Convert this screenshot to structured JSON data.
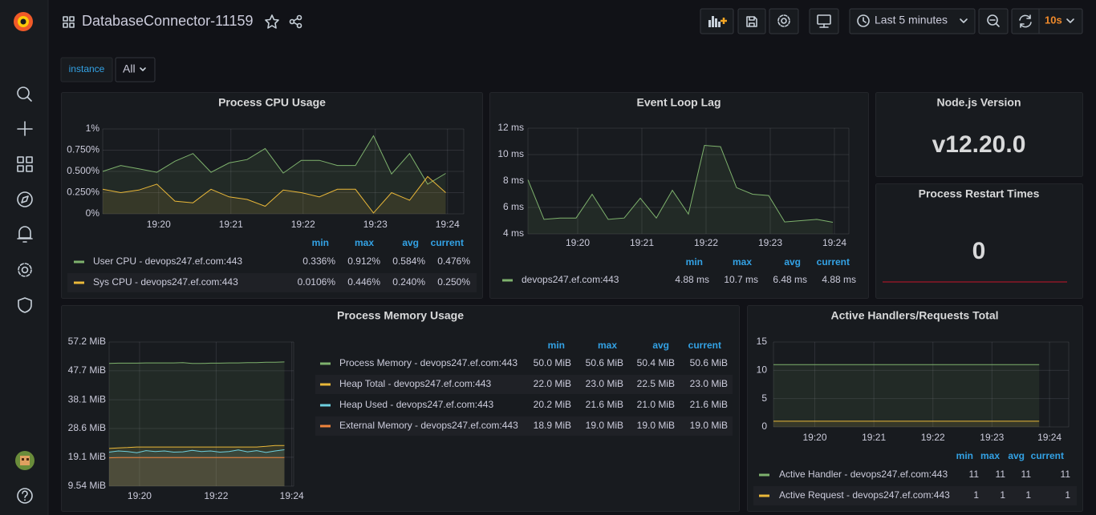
{
  "header": {
    "title": "DatabaseConnector-11159",
    "time_range": "Last 5 minutes",
    "refresh": "10s"
  },
  "variables": {
    "label": "instance",
    "value": "All"
  },
  "panels": [
    {
      "title": "Process CPU Usage",
      "type": "line",
      "xlim": [
        0,
        20
      ],
      "xticks": [
        {
          "value": 3.1,
          "label": "19:20"
        },
        {
          "value": 7.1,
          "label": "19:21"
        },
        {
          "value": 11.1,
          "label": "19:22"
        },
        {
          "value": 15.1,
          "label": "19:23"
        },
        {
          "value": 19.1,
          "label": "19:24"
        }
      ],
      "ylim": [
        0,
        1
      ],
      "yticks": [
        {
          "value": 0,
          "label": "0%"
        },
        {
          "value": 0.25,
          "label": "0.250%"
        },
        {
          "value": 0.5,
          "label": "0.500%"
        },
        {
          "value": 0.75,
          "label": "0.750%"
        },
        {
          "value": 1,
          "label": "1%"
        }
      ],
      "legend_columns": [
        "min",
        "max",
        "avg",
        "current"
      ],
      "series": [
        {
          "name": "User CPU - devops247.ef.com:443",
          "color": "#7eb26d",
          "values": [
            0.5,
            0.57,
            0.53,
            0.49,
            0.62,
            0.71,
            0.49,
            0.6,
            0.64,
            0.77,
            0.48,
            0.63,
            0.63,
            0.57,
            0.57,
            0.92,
            0.47,
            0.71,
            0.35,
            0.476
          ],
          "stats": [
            "0.336%",
            "0.912%",
            "0.584%",
            "0.476%"
          ]
        },
        {
          "name": "Sys CPU - devops247.ef.com:443",
          "color": "#eab839",
          "values": [
            0.29,
            0.25,
            0.28,
            0.35,
            0.15,
            0.13,
            0.29,
            0.2,
            0.17,
            0.09,
            0.28,
            0.25,
            0.2,
            0.29,
            0.29,
            0.01,
            0.25,
            0.16,
            0.44,
            0.25
          ],
          "stats": [
            "0.0106%",
            "0.446%",
            "0.240%",
            "0.250%"
          ]
        }
      ]
    },
    {
      "title": "Event Loop Lag",
      "type": "line",
      "xlim": [
        0,
        20
      ],
      "xticks": [
        {
          "value": 3.1,
          "label": "19:20"
        },
        {
          "value": 7.1,
          "label": "19:21"
        },
        {
          "value": 11.1,
          "label": "19:22"
        },
        {
          "value": 15.1,
          "label": "19:23"
        },
        {
          "value": 19.1,
          "label": "19:24"
        }
      ],
      "ylim": [
        4,
        12
      ],
      "yticks": [
        {
          "value": 4,
          "label": "4 ms"
        },
        {
          "value": 6,
          "label": "6 ms"
        },
        {
          "value": 8,
          "label": "8 ms"
        },
        {
          "value": 10,
          "label": "10 ms"
        },
        {
          "value": 12,
          "label": "12 ms"
        }
      ],
      "legend_columns": [
        "min",
        "max",
        "avg",
        "current"
      ],
      "series": [
        {
          "name": "devops247.ef.com:443",
          "color": "#7eb26d",
          "values": [
            8.1,
            5.1,
            5.2,
            5.2,
            7.0,
            5.1,
            5.2,
            6.7,
            5.2,
            7.3,
            5.5,
            10.7,
            10.6,
            7.5,
            7.0,
            6.9,
            4.9,
            5.0,
            5.1,
            4.88
          ],
          "stats": [
            "4.88 ms",
            "10.7 ms",
            "6.48 ms",
            "4.88 ms"
          ]
        }
      ]
    },
    {
      "title": "Node.js Version",
      "type": "stat",
      "value": "v12.20.0"
    },
    {
      "title": "Process Restart Times",
      "type": "stat",
      "value": 0
    },
    {
      "title": "Process Memory Usage",
      "type": "line",
      "xlim": [
        0,
        20
      ],
      "xticks": [
        {
          "value": 3.3,
          "label": "19:20"
        },
        {
          "value": 11.6,
          "label": "19:22"
        },
        {
          "value": 19.8,
          "label": "19:24"
        }
      ],
      "ylim": [
        9.54,
        57.2
      ],
      "yticks": [
        {
          "value": 9.54,
          "label": "9.54 MiB"
        },
        {
          "value": 19.1,
          "label": "19.1 MiB"
        },
        {
          "value": 28.6,
          "label": "28.6 MiB"
        },
        {
          "value": 38.1,
          "label": "38.1 MiB"
        },
        {
          "value": 47.7,
          "label": "47.7 MiB"
        },
        {
          "value": 57.2,
          "label": "57.2 MiB"
        }
      ],
      "legend_columns": [
        "min",
        "max",
        "avg",
        "current"
      ],
      "series": [
        {
          "name": "Process Memory - devops247.ef.com:443",
          "color": "#7eb26d",
          "values": [
            50.1,
            50.2,
            50.2,
            50.2,
            50.3,
            50.3,
            50.3,
            50.3,
            50.4,
            50.1,
            50.1,
            50.2,
            50.2,
            50.3,
            50.3,
            50.4,
            50.4,
            50.5,
            50.5,
            50.6
          ],
          "stats": [
            "50.0 MiB",
            "50.6 MiB",
            "50.4 MiB",
            "50.6 MiB"
          ]
        },
        {
          "name": "Heap Total - devops247.ef.com:443",
          "color": "#eab839",
          "values": [
            22.0,
            22.2,
            22.3,
            22.5,
            22.5,
            22.5,
            22.5,
            22.5,
            22.5,
            22.5,
            22.5,
            22.5,
            22.5,
            22.5,
            22.5,
            22.5,
            22.5,
            22.7,
            23.0,
            23.0
          ],
          "stats": [
            "22.0 MiB",
            "23.0 MiB",
            "22.5 MiB",
            "23.0 MiB"
          ]
        },
        {
          "name": "Heap Used - devops247.ef.com:443",
          "color": "#6ed0e0",
          "values": [
            20.8,
            21.2,
            21.0,
            20.6,
            21.3,
            21.0,
            21.2,
            20.8,
            20.9,
            21.4,
            21.0,
            21.2,
            20.8,
            21.0,
            21.5,
            20.9,
            21.3,
            20.7,
            21.2,
            21.6
          ],
          "stats": [
            "20.2 MiB",
            "21.6 MiB",
            "21.0 MiB",
            "21.6 MiB"
          ]
        },
        {
          "name": "External Memory - devops247.ef.com:443",
          "color": "#ef843c",
          "values": [
            18.9,
            19.0,
            19.0,
            19.0,
            19.0,
            19.0,
            19.0,
            19.0,
            19.0,
            19.0,
            19.0,
            19.0,
            19.0,
            19.0,
            19.0,
            19.0,
            19.0,
            19.0,
            19.0,
            19.0
          ],
          "stats": [
            "18.9 MiB",
            "19.0 MiB",
            "19.0 MiB",
            "19.0 MiB"
          ]
        }
      ]
    },
    {
      "title": "Active Handlers/Requests Total",
      "type": "line",
      "xlim": [
        0,
        20
      ],
      "xticks": [
        {
          "value": 2.8,
          "label": "19:20"
        },
        {
          "value": 6.8,
          "label": "19:21"
        },
        {
          "value": 10.8,
          "label": "19:22"
        },
        {
          "value": 14.8,
          "label": "19:23"
        },
        {
          "value": 18.7,
          "label": "19:24"
        }
      ],
      "ylim": [
        0,
        15
      ],
      "yticks": [
        0,
        5,
        10,
        15
      ],
      "legend_columns": [
        "min",
        "max",
        "avg",
        "current"
      ],
      "series": [
        {
          "name": "Active Handler - devops247.ef.com:443",
          "color": "#7eb26d",
          "values": [
            11,
            11,
            11,
            11,
            11,
            11,
            11,
            11,
            11,
            11,
            11,
            11,
            11,
            11,
            11,
            11,
            11,
            11,
            11
          ],
          "stats": [
            "11",
            "11",
            "11",
            "11"
          ]
        },
        {
          "name": "Active Request - devops247.ef.com:443",
          "color": "#eab839",
          "values": [
            1,
            1,
            1,
            1,
            1,
            1,
            1,
            1,
            1,
            1,
            1,
            1,
            1,
            1,
            1,
            1,
            1,
            1,
            1
          ],
          "stats": [
            "1",
            "1",
            "1",
            "1"
          ]
        }
      ]
    }
  ]
}
